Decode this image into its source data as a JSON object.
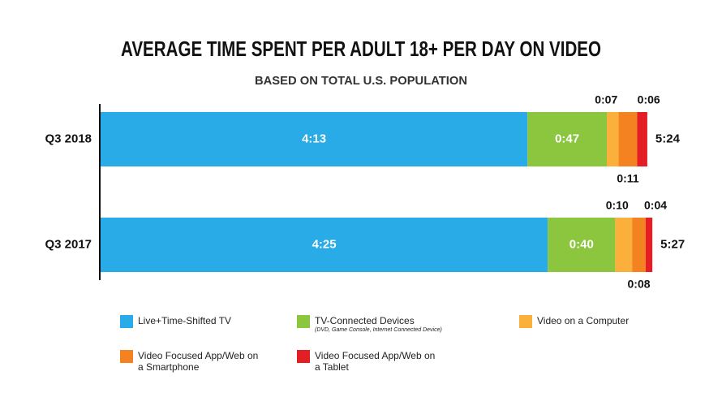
{
  "chart_data": {
    "type": "stacked-bar-horizontal",
    "title": "AVERAGE TIME SPENT PER ADULT 18+ PER DAY ON VIDEO",
    "subtitle": "BASED ON TOTAL U.S. POPULATION",
    "categories": [
      "Q3 2018",
      "Q3 2017"
    ],
    "series": [
      {
        "name": "Live+Time-Shifted TV",
        "color": "#29abe8",
        "values": [
          253,
          265
        ],
        "value_labels": [
          "4:13",
          "4:25"
        ]
      },
      {
        "name": "TV-Connected Devices",
        "note": "(DVD, Game Console, Internet Connected Device)",
        "color": "#8cc63f",
        "values": [
          47,
          40
        ],
        "value_labels": [
          "0:47",
          "0:40"
        ]
      },
      {
        "name": "Video on a Computer",
        "color": "#fbb03b",
        "values": [
          7,
          10
        ],
        "value_labels": [
          "0:07",
          "0:10"
        ]
      },
      {
        "name": "Video Focused App/Web on a Smartphone",
        "color": "#f58220",
        "values": [
          11,
          8
        ],
        "value_labels": [
          "0:11",
          "0:08"
        ]
      },
      {
        "name": "Video Focused App/Web on a Tablet",
        "color": "#e31e24",
        "values": [
          6,
          4
        ],
        "value_labels": [
          "0:06",
          "0:04"
        ]
      }
    ],
    "totals": [
      324,
      327
    ],
    "total_labels": [
      "5:24",
      "5:27"
    ]
  }
}
